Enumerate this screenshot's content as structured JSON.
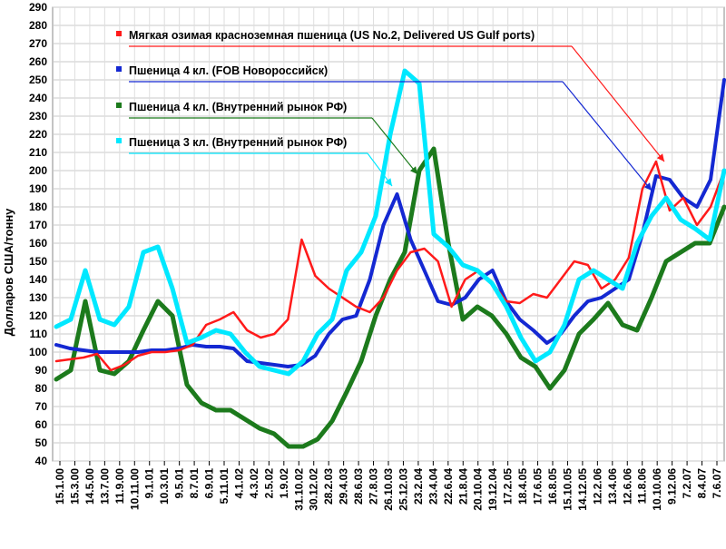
{
  "chart_data": {
    "type": "line",
    "ylabel": "Долларов США/тонну",
    "ylim": [
      40,
      290
    ],
    "y_ticks": [
      40,
      50,
      60,
      70,
      80,
      90,
      100,
      110,
      120,
      130,
      140,
      150,
      160,
      170,
      180,
      190,
      200,
      210,
      220,
      230,
      240,
      250,
      260,
      270,
      280,
      290
    ],
    "grid": true,
    "legend_position": "top-center",
    "x_tick_labels": [
      "15.1.00",
      "15.3.00",
      "14.5.00",
      "13.7.00",
      "11.9.00",
      "10.11.00",
      "9.1.01",
      "10.3.01",
      "9.5.01",
      "8.7.01",
      "6.9.01",
      "5.11.01",
      "4.1.02",
      "4.3.02",
      "2.5.02",
      "1.9.02",
      "31.10.02",
      "30.12.02",
      "28.2.03",
      "29.4.03",
      "28.6.03",
      "27.8.03",
      "26.10.03",
      "25.12.03",
      "23.2.04",
      "23.4.04",
      "22.6.04",
      "21.8.04",
      "20.10.04",
      "19.12.04",
      "17.2.05",
      "18.4.05",
      "17.6.05",
      "16.8.05",
      "15.10.05",
      "14.12.05",
      "12.2.06",
      "13.4.06",
      "12.6.06",
      "11.8.06",
      "10.10.06",
      "9.12.06",
      "7.2.07",
      "8.4.07",
      "7.6.07"
    ],
    "series": [
      {
        "name": "Мягкая озимая красноземная пшеница (US No.2, Delivered US Gulf ports)",
        "color": "#ff1a1a",
        "values": [
          95,
          96,
          97,
          99,
          90,
          93,
          98,
          100,
          100,
          101,
          104,
          115,
          118,
          122,
          112,
          108,
          110,
          118,
          162,
          142,
          135,
          130,
          125,
          122,
          130,
          145,
          155,
          157,
          150,
          125,
          140,
          145,
          138,
          128,
          127,
          132,
          130,
          140,
          150,
          148,
          135,
          140,
          152,
          190,
          205,
          178,
          185,
          170,
          180,
          200
        ]
      },
      {
        "name": "Пшеница 4 кл. (FOB Новороссийск)",
        "color": "#1428d2",
        "values": [
          104,
          102,
          101,
          100,
          100,
          100,
          100,
          101,
          101,
          102,
          104,
          103,
          103,
          102,
          95,
          94,
          93,
          92,
          93,
          98,
          110,
          118,
          120,
          140,
          170,
          187,
          162,
          145,
          128,
          126,
          130,
          140,
          145,
          128,
          118,
          112,
          105,
          110,
          120,
          128,
          130,
          135,
          140,
          165,
          197,
          195,
          185,
          180,
          195,
          250
        ]
      },
      {
        "name": "Пшеница 4 кл. (Внутренний рынок РФ)",
        "color": "#1c7a1c",
        "values": [
          85,
          90,
          128,
          90,
          88,
          95,
          112,
          128,
          120,
          82,
          72,
          68,
          68,
          63,
          58,
          55,
          48,
          48,
          52,
          62,
          78,
          95,
          120,
          140,
          155,
          200,
          212,
          160,
          118,
          125,
          120,
          110,
          97,
          92,
          80,
          90,
          110,
          118,
          127,
          115,
          112,
          130,
          150,
          155,
          160,
          160,
          180
        ]
      },
      {
        "name": "Пшеница 3 кл. (Внутренний рынок РФ)",
        "color": "#00e8ff",
        "values": [
          114,
          118,
          145,
          118,
          115,
          125,
          155,
          158,
          135,
          105,
          108,
          112,
          110,
          100,
          92,
          90,
          88,
          95,
          110,
          118,
          145,
          155,
          175,
          220,
          255,
          248,
          165,
          158,
          148,
          145,
          138,
          125,
          108,
          95,
          100,
          115,
          140,
          145,
          140,
          135,
          160,
          175,
          185,
          173,
          168,
          162,
          200
        ]
      }
    ]
  }
}
